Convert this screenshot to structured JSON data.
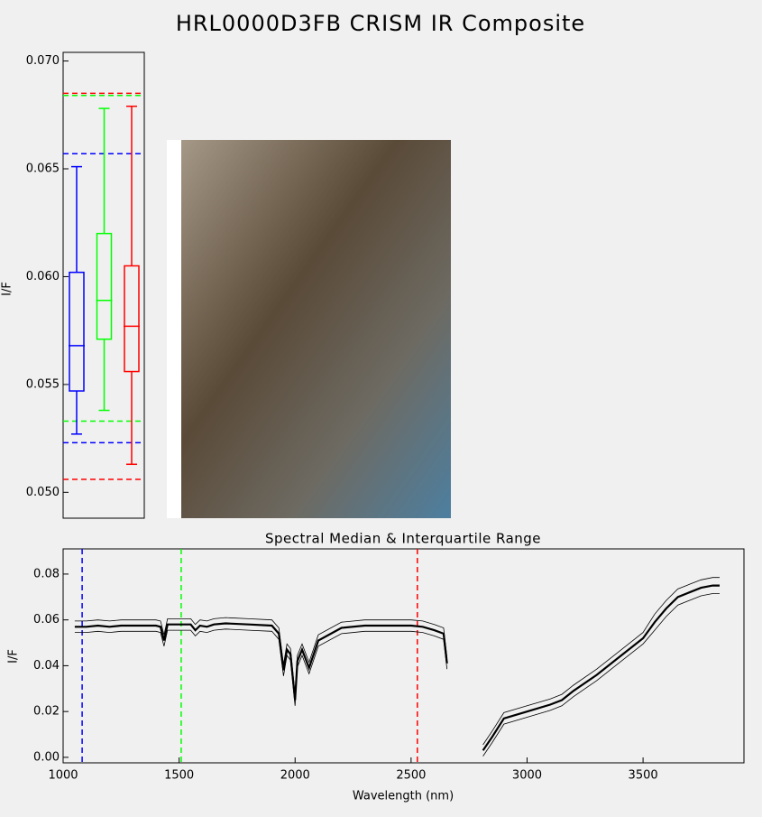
{
  "title": "HRL0000D3FB CRISM IR Composite",
  "chart_data": [
    {
      "type": "box",
      "ylabel": "I/F",
      "ylim": [
        0.0488,
        0.0704
      ],
      "yticks": [
        {
          "value": 0.05,
          "label": "0.050"
        },
        {
          "value": 0.055,
          "label": "0.055"
        },
        {
          "value": 0.06,
          "label": "0.060"
        },
        {
          "value": 0.065,
          "label": "0.065"
        },
        {
          "value": 0.07,
          "label": "0.070"
        }
      ],
      "series": [
        {
          "color": "#0000ff",
          "values": [
            0.0527,
            0.0547,
            0.0568,
            0.0602,
            0.0651
          ]
        },
        {
          "color": "#00ff00",
          "values": [
            0.0538,
            0.0571,
            0.0589,
            0.062,
            0.0678
          ]
        },
        {
          "color": "#ff0000",
          "values": [
            0.0513,
            0.0556,
            0.0577,
            0.0605,
            0.0679
          ]
        }
      ],
      "hlines": [
        {
          "color": "#0000ff",
          "values": [
            0.0523,
            0.0657
          ]
        },
        {
          "color": "#00ff00",
          "values": [
            0.0533,
            0.0684
          ]
        },
        {
          "color": "#ff0000",
          "values": [
            0.0506,
            0.0685
          ]
        }
      ]
    },
    {
      "type": "line",
      "title": "Spectral Median & Interquartile Range",
      "xlabel": "Wavelength (nm)",
      "ylabel": "I/F",
      "xlim": [
        1000,
        3935
      ],
      "ylim": [
        -0.0024,
        0.091
      ],
      "xticks": [
        1000,
        1500,
        2000,
        2500,
        3000,
        3500
      ],
      "yticks": [
        {
          "value": 0,
          "label": "0.00"
        },
        {
          "value": 0.02,
          "label": "0.02"
        },
        {
          "value": 0.04,
          "label": "0.04"
        },
        {
          "value": 0.06,
          "label": "0.06"
        },
        {
          "value": 0.08,
          "label": "0.08"
        }
      ],
      "vlines": [
        {
          "color": "#0000ff",
          "value": 1082
        },
        {
          "color": "#00ff00",
          "value": 1509
        },
        {
          "color": "#ff0000",
          "value": 2527
        }
      ],
      "x": [
        1050,
        1100,
        1150,
        1200,
        1250,
        1300,
        1350,
        1400,
        1420,
        1435,
        1450,
        1500,
        1550,
        1570,
        1590,
        1620,
        1650,
        1700,
        1800,
        1900,
        1930,
        1950,
        1965,
        1980,
        2000,
        2010,
        2030,
        2060,
        2100,
        2200,
        2300,
        2400,
        2500,
        2550,
        2600,
        2640,
        2655,
        2700,
        2810,
        2850,
        2900,
        3000,
        3100,
        3150,
        3200,
        3300,
        3400,
        3500,
        3550,
        3600,
        3650,
        3700,
        3750,
        3800,
        3830
      ],
      "series": [
        {
          "color": "#000000",
          "values": [
            0.057,
            0.057,
            0.0575,
            0.057,
            0.0575,
            0.0575,
            0.0575,
            0.0575,
            0.057,
            0.051,
            0.058,
            0.058,
            0.058,
            0.0555,
            0.0575,
            0.057,
            0.058,
            0.0585,
            0.058,
            0.0575,
            0.054,
            0.038,
            0.047,
            0.045,
            0.025,
            0.042,
            0.047,
            0.039,
            0.051,
            0.0565,
            0.0575,
            0.0575,
            0.0575,
            0.057,
            0.0555,
            0.054,
            0.041,
            null,
            0.003,
            0.009,
            0.017,
            0.02,
            0.023,
            0.025,
            0.029,
            0.036,
            0.044,
            0.052,
            0.059,
            0.065,
            0.07,
            0.072,
            0.074,
            0.075,
            0.075
          ]
        },
        {
          "color": "#000000",
          "values": [
            0.0595,
            0.0595,
            0.06,
            0.0595,
            0.06,
            0.06,
            0.06,
            0.06,
            0.0595,
            0.0535,
            0.0605,
            0.0605,
            0.0605,
            0.058,
            0.06,
            0.0595,
            0.0605,
            0.061,
            0.0605,
            0.06,
            0.0565,
            0.0405,
            0.0495,
            0.0475,
            0.0275,
            0.0445,
            0.0495,
            0.0415,
            0.0535,
            0.059,
            0.06,
            0.06,
            0.06,
            0.0595,
            0.058,
            0.0565,
            0.0435,
            null,
            0.0055,
            0.0115,
            0.0195,
            0.0225,
            0.0255,
            0.0275,
            0.0315,
            0.0385,
            0.0465,
            0.0545,
            0.0625,
            0.0685,
            0.0735,
            0.0755,
            0.0775,
            0.0785,
            0.0785
          ]
        },
        {
          "color": "#000000",
          "values": [
            0.0545,
            0.0545,
            0.055,
            0.0545,
            0.055,
            0.055,
            0.055,
            0.055,
            0.0545,
            0.0485,
            0.0555,
            0.0555,
            0.0555,
            0.053,
            0.055,
            0.0545,
            0.0555,
            0.056,
            0.0555,
            0.055,
            0.0515,
            0.0355,
            0.0445,
            0.0425,
            0.0225,
            0.0395,
            0.0445,
            0.0365,
            0.0485,
            0.054,
            0.055,
            0.055,
            0.055,
            0.0545,
            0.053,
            0.0515,
            0.0385,
            null,
            0.0005,
            0.0065,
            0.0145,
            0.0175,
            0.0205,
            0.0225,
            0.0265,
            0.0335,
            0.0415,
            0.0495,
            0.0555,
            0.0615,
            0.0665,
            0.0685,
            0.0705,
            0.0715,
            0.0715
          ]
        }
      ]
    }
  ]
}
